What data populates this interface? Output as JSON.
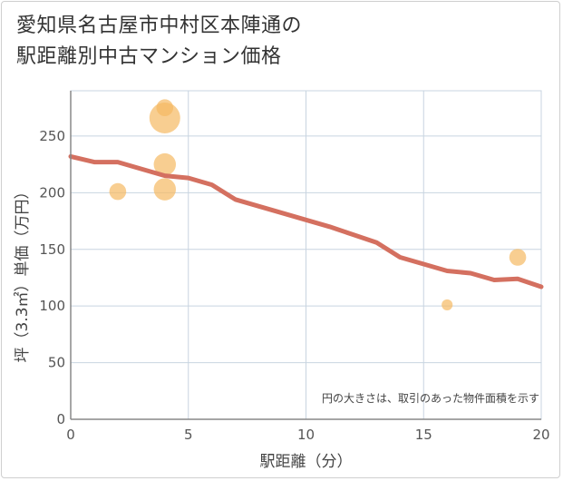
{
  "title_line1": "愛知県名古屋市中村区本陣通の",
  "title_line2": "駅距離別中古マンション価格",
  "chart_data": {
    "type": "scatter",
    "title": "愛知県名古屋市中村区本陣通の駅距離別中古マンション価格",
    "xlabel": "駅距離（分）",
    "ylabel": "坪（3.3㎡）単価（万円）",
    "xlim": [
      0,
      20
    ],
    "ylim": [
      0,
      290
    ],
    "xticks": [
      "0",
      "5",
      "10",
      "15",
      "20"
    ],
    "yticks": [
      "0",
      "50",
      "100",
      "150",
      "200",
      "250"
    ],
    "grid": true,
    "annotation": "円の大きさは、取引のあった物件面積を示す",
    "bubbles": [
      {
        "x": 2,
        "y": 201,
        "size": 0.45
      },
      {
        "x": 4,
        "y": 275,
        "size": 0.45
      },
      {
        "x": 4,
        "y": 266,
        "size": 1.0
      },
      {
        "x": 4,
        "y": 225,
        "size": 0.66
      },
      {
        "x": 4,
        "y": 203,
        "size": 0.66
      },
      {
        "x": 16,
        "y": 101,
        "size": 0.22
      },
      {
        "x": 19,
        "y": 143,
        "size": 0.45
      }
    ],
    "trend": {
      "x": [
        0,
        1,
        2,
        3,
        4,
        5,
        6,
        7,
        8,
        9,
        10,
        11,
        12,
        13,
        14,
        15,
        16,
        17,
        18,
        19,
        20
      ],
      "y": [
        232,
        227,
        227,
        221,
        215,
        213,
        207,
        194,
        188,
        182,
        176,
        170,
        163,
        156,
        143,
        137,
        131,
        129,
        123,
        124,
        117
      ]
    },
    "colors": {
      "bubble": "#f5b962",
      "trend": "#d47060",
      "grid": "#c8d4e0",
      "axis": "#888888",
      "tick_text": "#555555"
    }
  }
}
